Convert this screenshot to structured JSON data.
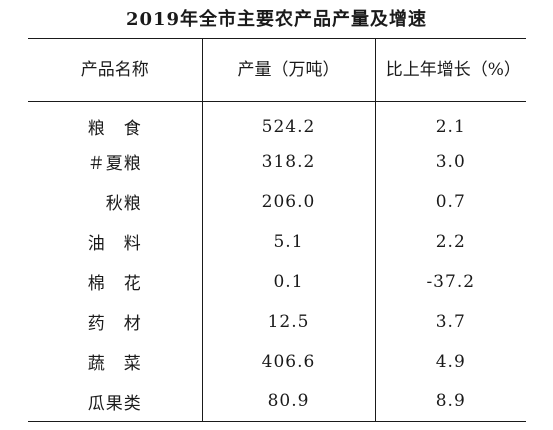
{
  "title": "2019年全市主要农产品产量及增速",
  "headers": {
    "product": "产品名称",
    "output": "产量（万吨）",
    "growth": "比上年增长（%）"
  },
  "rows": [
    {
      "name": "粮　食",
      "output": "524.2",
      "growth": "2.1"
    },
    {
      "name": "＃夏粮",
      "output": "318.2",
      "growth": "3.0"
    },
    {
      "name": "　秋粮",
      "output": "206.0",
      "growth": "0.7"
    },
    {
      "name": "油　料",
      "output": "5.1",
      "growth": "2.2"
    },
    {
      "name": "棉　花",
      "output": "0.1",
      "growth": "-37.2"
    },
    {
      "name": "药　材",
      "output": "12.5",
      "growth": "3.7"
    },
    {
      "name": "蔬　菜",
      "output": "406.6",
      "growth": "4.9"
    },
    {
      "name": "瓜果类",
      "output": "80.9",
      "growth": "8.9"
    }
  ]
}
